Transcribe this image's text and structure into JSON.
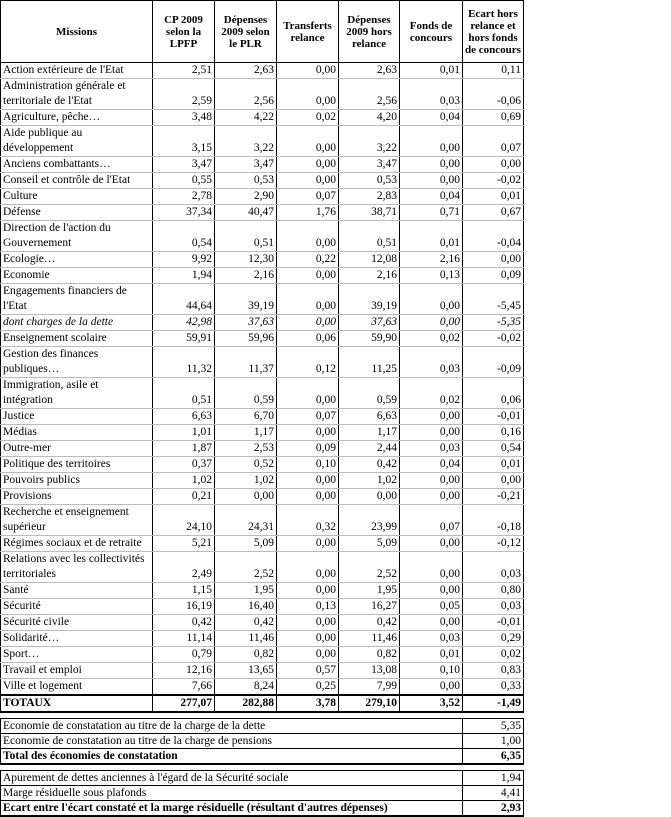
{
  "headers": [
    "Missions",
    "CP 2009 selon la LPFP",
    "Dépenses 2009 selon le PLR",
    "Transferts relance",
    "Dépenses 2009 hors relance",
    "Fonds de concours",
    "Ecart hors relance et hors fonds de concours"
  ],
  "rows": [
    {
      "m": "Action extérieure de l'Etat",
      "v": [
        "2,51",
        "2,63",
        "0,00",
        "2,63",
        "0,01",
        "0,11"
      ]
    },
    {
      "m": "Administration générale et territoriale de l'Etat",
      "v": [
        "2,59",
        "2,56",
        "0,00",
        "2,56",
        "0,03",
        "-0,06"
      ],
      "tall": true
    },
    {
      "m": "Agriculture, pêche…",
      "v": [
        "3,48",
        "4,22",
        "0,02",
        "4,20",
        "0,04",
        "0,69"
      ]
    },
    {
      "m": "Aide publique au développement",
      "v": [
        "3,15",
        "3,22",
        "0,00",
        "3,22",
        "0,00",
        "0,07"
      ]
    },
    {
      "m": "Anciens combattants…",
      "v": [
        "3,47",
        "3,47",
        "0,00",
        "3,47",
        "0,00",
        "0,00"
      ]
    },
    {
      "m": "Conseil et contrôle de l'Etat",
      "v": [
        "0,55",
        "0,53",
        "0,00",
        "0,53",
        "0,00",
        "-0,02"
      ]
    },
    {
      "m": "Culture",
      "v": [
        "2,78",
        "2,90",
        "0,07",
        "2,83",
        "0,04",
        "0,01"
      ]
    },
    {
      "m": "Défense",
      "v": [
        "37,34",
        "40,47",
        "1,76",
        "38,71",
        "0,71",
        "0,67"
      ]
    },
    {
      "m": "Direction de l'action du Gouvernement",
      "v": [
        "0,54",
        "0,51",
        "0,00",
        "0,51",
        "0,01",
        "-0,04"
      ],
      "tall": true
    },
    {
      "m": "Ecologie…",
      "v": [
        "9,92",
        "12,30",
        "0,22",
        "12,08",
        "2,16",
        "0,00"
      ]
    },
    {
      "m": "Economie",
      "v": [
        "1,94",
        "2,16",
        "0,00",
        "2,16",
        "0,13",
        "0,09"
      ]
    },
    {
      "m": "Engagements financiers de l'Etat",
      "v": [
        "44,64",
        "39,19",
        "0,00",
        "39,19",
        "0,00",
        "-5,45"
      ]
    },
    {
      "m": "dont charges de la dette",
      "v": [
        "42,98",
        "37,63",
        "0,00",
        "37,63",
        "0,00",
        "-5,35"
      ],
      "italic": true
    },
    {
      "m": "Enseignement scolaire",
      "v": [
        "59,91",
        "59,96",
        "0,06",
        "59,90",
        "0,02",
        "-0,02"
      ]
    },
    {
      "m": "Gestion des finances publiques…",
      "v": [
        "11,32",
        "11,37",
        "0,12",
        "11,25",
        "0,03",
        "-0,09"
      ]
    },
    {
      "m": "Immigration, asile et intégration",
      "v": [
        "0,51",
        "0,59",
        "0,00",
        "0,59",
        "0,02",
        "0,06"
      ]
    },
    {
      "m": "Justice",
      "v": [
        "6,63",
        "6,70",
        "0,07",
        "6,63",
        "0,00",
        "-0,01"
      ]
    },
    {
      "m": "Médias",
      "v": [
        "1,01",
        "1,17",
        "0,00",
        "1,17",
        "0,00",
        "0,16"
      ]
    },
    {
      "m": "Outre-mer",
      "v": [
        "1,87",
        "2,53",
        "0,09",
        "2,44",
        "0,03",
        "0,54"
      ]
    },
    {
      "m": "Politique des territoires",
      "v": [
        "0,37",
        "0,52",
        "0,10",
        "0,42",
        "0,04",
        "0,01"
      ]
    },
    {
      "m": "Pouvoirs publics",
      "v": [
        "1,02",
        "1,02",
        "0,00",
        "1,02",
        "0,00",
        "0,00"
      ]
    },
    {
      "m": "Provisions",
      "v": [
        "0,21",
        "0,00",
        "0,00",
        "0,00",
        "0,00",
        "-0,21"
      ]
    },
    {
      "m": "Recherche et enseignement supérieur",
      "v": [
        "24,10",
        "24,31",
        "0,32",
        "23,99",
        "0,07",
        "-0,18"
      ],
      "tall": true
    },
    {
      "m": "Régimes sociaux et de retraite",
      "v": [
        "5,21",
        "5,09",
        "0,00",
        "5,09",
        "0,00",
        "-0,12"
      ]
    },
    {
      "m": "Relations avec les collectivités territoriales",
      "v": [
        "2,49",
        "2,52",
        "0,00",
        "2,52",
        "0,00",
        "0,03"
      ],
      "tall": true
    },
    {
      "m": "Santé",
      "v": [
        "1,15",
        "1,95",
        "0,00",
        "1,95",
        "0,00",
        "0,80"
      ]
    },
    {
      "m": "Sécurité",
      "v": [
        "16,19",
        "16,40",
        "0,13",
        "16,27",
        "0,05",
        "0,03"
      ]
    },
    {
      "m": "Sécurité civile",
      "v": [
        "0,42",
        "0,42",
        "0,00",
        "0,42",
        "0,00",
        "-0,01"
      ]
    },
    {
      "m": "Solidarité…",
      "v": [
        "11,14",
        "11,46",
        "0,00",
        "11,46",
        "0,03",
        "0,29"
      ]
    },
    {
      "m": "Sport…",
      "v": [
        "0,79",
        "0,82",
        "0,00",
        "0,82",
        "0,01",
        "0,02"
      ]
    },
    {
      "m": "Travail et emploi",
      "v": [
        "12,16",
        "13,65",
        "0,57",
        "13,08",
        "0,10",
        "0,83"
      ]
    },
    {
      "m": "Ville et logement",
      "v": [
        "7,66",
        "8,24",
        "0,25",
        "7,99",
        "0,00",
        "0,33"
      ]
    }
  ],
  "totals": {
    "m": "TOTAUX",
    "v": [
      "277,07",
      "282,88",
      "3,78",
      "279,10",
      "3,52",
      "-1,49"
    ]
  },
  "summary1": [
    {
      "label": "Economie de constatation au titre de la charge de la dette",
      "value": "5,35"
    },
    {
      "label": "Economie de constatation au titre de la charge de pensions",
      "value": "1,00"
    },
    {
      "label": "Total des économies de constatation",
      "value": "6,35",
      "bold": true
    }
  ],
  "summary2": [
    {
      "label": "Apurement de dettes anciennes à l'égard de la Sécurité sociale",
      "value": "1,94"
    },
    {
      "label": "Marge résiduelle sous plafonds",
      "value": "4,41"
    },
    {
      "label": "Ecart entre l'écart constaté et la marge résiduelle (résultant d'autres dépenses)",
      "value": "2,93",
      "bold": true
    }
  ]
}
